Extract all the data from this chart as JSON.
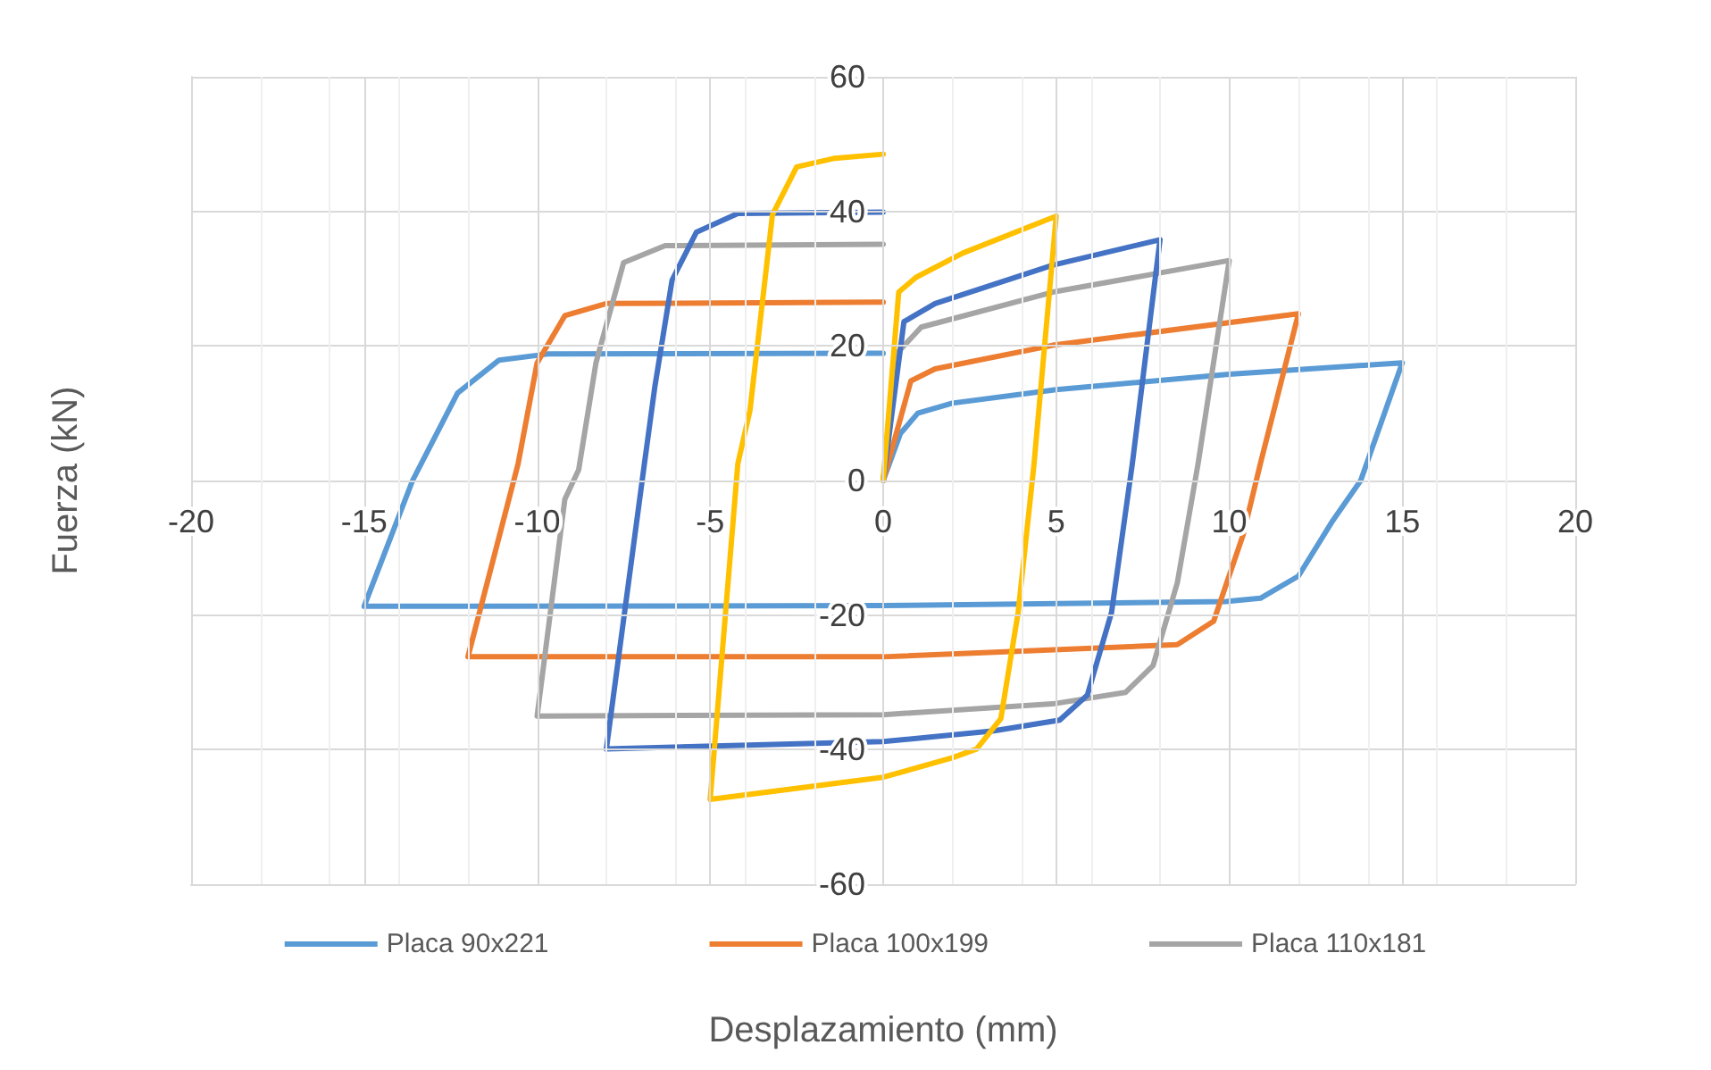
{
  "chart_data": {
    "type": "line",
    "xlabel": "Desplazamiento (mm)",
    "ylabel": "Fuerza (kN)",
    "xlim": [
      -20,
      20
    ],
    "xticks": [
      -20,
      -15,
      -10,
      -5,
      0,
      5,
      10,
      15,
      20
    ],
    "ylim": [
      -60,
      60
    ],
    "yticks": [
      -60,
      -40,
      -20,
      0,
      20,
      40,
      60
    ],
    "grid": true,
    "legend": "bottom",
    "marker": "none",
    "line_style": "solid",
    "series": [
      {
        "name": "Placa 90x221",
        "color": "#5b9bd5",
        "x": [
          0,
          0.5,
          1,
          2,
          5,
          10,
          15,
          13.8,
          13.0,
          12.0,
          10.9,
          9.9,
          0,
          -15.0,
          -13.6,
          -12.3,
          -11.1,
          -9.7,
          0
        ],
        "values": [
          0,
          7,
          10,
          11.5,
          13.5,
          15.8,
          17.5,
          0,
          -5.9,
          -14.2,
          -17.5,
          -18,
          -18.6,
          -18.7,
          0,
          13.0,
          17.9,
          18.8,
          18.9
        ]
      },
      {
        "name": "Placa 100x199",
        "color": "#ed7d31",
        "x": [
          0,
          0.8,
          1.5,
          4.9,
          12.0,
          10.9,
          10.4,
          9.55,
          8.5,
          0,
          -12.0,
          -10.55,
          -10.0,
          -9.2,
          -8.0,
          0
        ],
        "values": [
          0,
          14.8,
          16.6,
          20.1,
          24.8,
          2.5,
          -8.1,
          -20.9,
          -24.4,
          -26.2,
          -26.2,
          2.5,
          17.5,
          24.5,
          26.3,
          26.5
        ]
      },
      {
        "name": "Placa 110x181",
        "color": "#a5a5a5",
        "x": [
          0,
          0.45,
          1.1,
          4.9,
          10.0,
          9.1,
          8.5,
          7.8,
          7.0,
          4.9,
          0,
          -10.0,
          -9.2,
          -8.8,
          -8.3,
          -7.5,
          -6.3,
          0
        ],
        "values": [
          0,
          19.2,
          22.8,
          28,
          32.7,
          2.5,
          -15.2,
          -27.5,
          -31.5,
          -33.2,
          -34.8,
          -35,
          -2.8,
          1.6,
          17.5,
          32.4,
          34.9,
          35.1
        ]
      },
      {
        "color": "#4472c4",
        "x": [
          0,
          0.6,
          1.5,
          4.9,
          8.0,
          7.2,
          6.6,
          5.9,
          5.1,
          3.2,
          0,
          -8.0,
          -6.9,
          -6.6,
          -6.1,
          -5.4,
          -4.2,
          0
        ],
        "values": [
          0,
          23.6,
          26.3,
          32,
          35.8,
          2.5,
          -19.6,
          -31.9,
          -35.6,
          -37.2,
          -38.8,
          -39.9,
          2.5,
          13.9,
          29.8,
          36.9,
          39.7,
          39.9
        ]
      },
      {
        "color": "#ffc000",
        "x": [
          0,
          0.45,
          0.95,
          2.3,
          5.0,
          4.36,
          3.9,
          3.4,
          2.7,
          2.0,
          0,
          -5.0,
          -4.2,
          -3.85,
          -3.2,
          -2.5,
          -1.4,
          0
        ],
        "values": [
          0,
          28,
          30.2,
          33.8,
          39.3,
          2.5,
          -19.6,
          -35.4,
          -39.9,
          -41.2,
          -44.1,
          -47.4,
          2.5,
          10.4,
          39.5,
          46.6,
          47.9,
          48.5
        ]
      }
    ]
  }
}
